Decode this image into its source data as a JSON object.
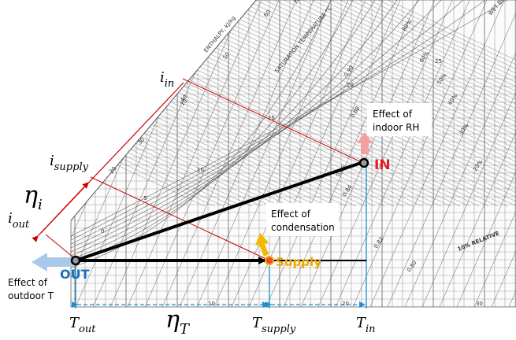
{
  "chart_labels": {
    "enthalpy_axis": "ENTHALPY, kJ/kg",
    "saturation_temperature": "SATURATION TEMPERATURE °C",
    "relative_humidity": "10% RELATIVE",
    "wet_bulb": "WET BU",
    "enthalpy_ticks": [
      "70",
      "60",
      "50",
      "40",
      "30",
      "20",
      "10",
      "0",
      "5",
      "10",
      "15",
      "20",
      "25"
    ],
    "dry_bulb_ticks": [
      "10",
      "20",
      "30"
    ],
    "rh_ticks": [
      "80%",
      "60%",
      "50%",
      "40%",
      "30%",
      "20%",
      "0.90",
      "0.88",
      "0.86",
      "0.84",
      "0.82",
      "0.80"
    ]
  },
  "points": {
    "in_label": "IN",
    "out_label": "OUT",
    "supply_label": "Supply"
  },
  "annotations": {
    "indoor_rh": [
      "Effect of",
      "indoor RH"
    ],
    "condensation": [
      "Effect of",
      "condensation"
    ],
    "outdoor_t": [
      "Effect of",
      "outdoor T"
    ]
  },
  "enthalpy_labels": {
    "i_in_base": "i",
    "i_in_sub": "in",
    "i_supply_base": "i",
    "i_supply_sub": "supply",
    "i_out_base": "i",
    "i_out_sub": "out",
    "eta_i_base": "η",
    "eta_i_sub": "i"
  },
  "temperature_labels": {
    "t_out_base": "T",
    "t_out_sub": "out",
    "eta_t_base": "η",
    "eta_t_sub": "T",
    "t_supply_base": "T",
    "t_supply_sub": "supply",
    "t_in_base": "T",
    "t_in_sub": "in"
  },
  "colors": {
    "red_line": "#cc0000",
    "blue_line": "#1a8fd6",
    "in_label": "#e02020",
    "out_label": "#1f6fb8",
    "supply_label": "#f0a800",
    "rh_arrow": "#f2a0a0",
    "condensation_arrow": "#f5b800",
    "outdoor_arrow": "#a9c9ea",
    "chart_grid": "#444444"
  }
}
